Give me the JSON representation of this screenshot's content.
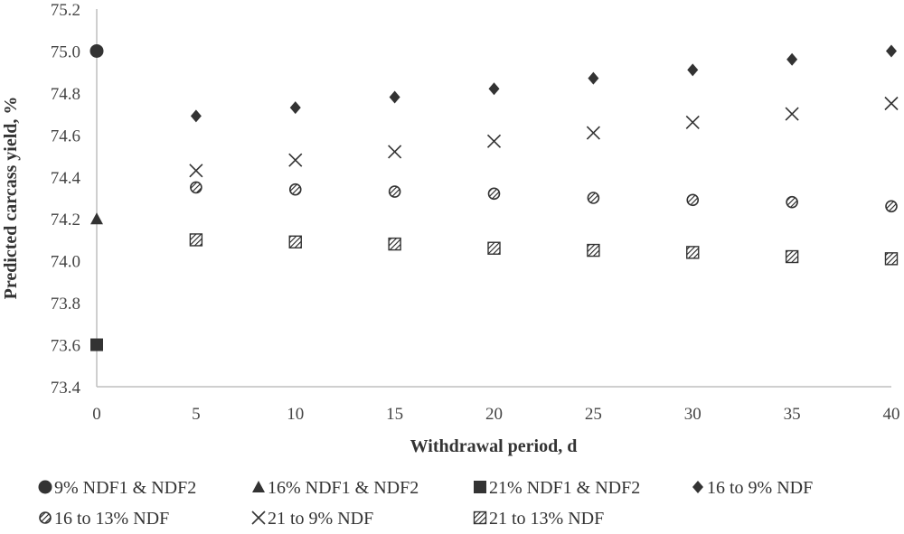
{
  "chart_data": {
    "type": "scatter",
    "title": "",
    "xlabel": "Withdrawal period, d",
    "ylabel": "Predicted carcass yield, %",
    "xlim": [
      0,
      40
    ],
    "ylim": [
      73.4,
      75.2
    ],
    "xticks": [
      "0",
      "5",
      "10",
      "15",
      "20",
      "25",
      "30",
      "35",
      "40"
    ],
    "yticks": [
      "73.4",
      "73.6",
      "73.8",
      "74.0",
      "74.2",
      "74.4",
      "74.6",
      "74.8",
      "75.0",
      "75.2"
    ],
    "legend_position": "bottom",
    "series": [
      {
        "name": "9% NDF1 & NDF2",
        "marker": "circle",
        "x": [
          0
        ],
        "y": [
          75.0
        ]
      },
      {
        "name": "16% NDF1 & NDF2",
        "marker": "triangle",
        "x": [
          0
        ],
        "y": [
          74.2
        ]
      },
      {
        "name": "21% NDF1 & NDF2",
        "marker": "square",
        "x": [
          0
        ],
        "y": [
          73.6
        ]
      },
      {
        "name": "16 to 9% NDF",
        "marker": "diamond",
        "x": [
          5,
          10,
          15,
          20,
          25,
          30,
          35,
          40
        ],
        "y": [
          74.69,
          74.73,
          74.78,
          74.82,
          74.87,
          74.91,
          74.96,
          75.0
        ]
      },
      {
        "name": "16 to 13% NDF",
        "marker": "hatched-circle",
        "x": [
          5,
          10,
          15,
          20,
          25,
          30,
          35,
          40
        ],
        "y": [
          74.35,
          74.34,
          74.33,
          74.32,
          74.3,
          74.29,
          74.28,
          74.26
        ]
      },
      {
        "name": "21 to 9% NDF",
        "marker": "x",
        "x": [
          5,
          10,
          15,
          20,
          25,
          30,
          35,
          40
        ],
        "y": [
          74.43,
          74.48,
          74.52,
          74.57,
          74.61,
          74.66,
          74.7,
          74.75
        ]
      },
      {
        "name": "21 to 13% NDF",
        "marker": "hatched-square",
        "x": [
          5,
          10,
          15,
          20,
          25,
          30,
          35,
          40
        ],
        "y": [
          74.1,
          74.09,
          74.08,
          74.06,
          74.05,
          74.04,
          74.02,
          74.01
        ]
      }
    ],
    "colors": {
      "marker": "#333333",
      "axis": "#bfbfbf",
      "text": "#444444"
    }
  }
}
